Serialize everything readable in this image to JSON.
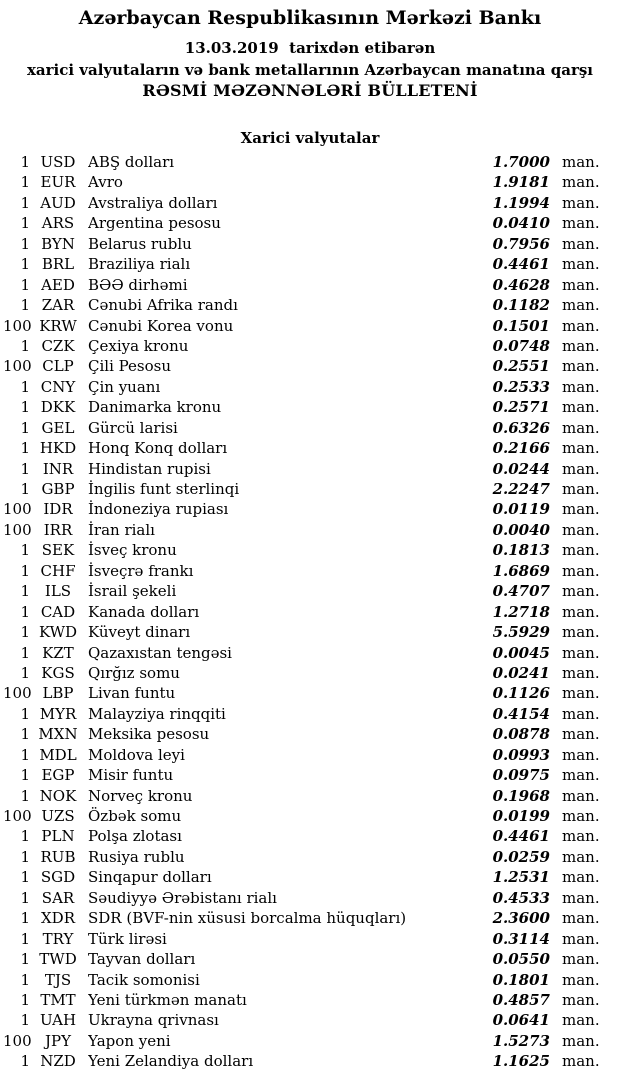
{
  "header": {
    "title": "Azərbaycan Respublikasının Mərkəzi Bankı",
    "date_line": "13.03.2019  tarixdən etibarən",
    "subtitle": "xarici valyutaların və bank metallarının Azərbaycan manatına qarşı",
    "bulletin_title": "RƏSMİ MƏZƏNNƏLƏRİ BÜLLETENİ"
  },
  "section": {
    "title": "Xarici valyutalar"
  },
  "unit_label": "man.",
  "colors": {
    "text": "#000000",
    "background": "#ffffff"
  },
  "rates": [
    {
      "qty": "1",
      "code": "USD",
      "name": "ABŞ dolları",
      "rate": "1.7000"
    },
    {
      "qty": "1",
      "code": "EUR",
      "name": "Avro",
      "rate": "1.9181"
    },
    {
      "qty": "1",
      "code": "AUD",
      "name": "Avstraliya dolları",
      "rate": "1.1994"
    },
    {
      "qty": "1",
      "code": "ARS",
      "name": "Argentina pesosu",
      "rate": "0.0410"
    },
    {
      "qty": "1",
      "code": "BYN",
      "name": "Belarus rublu",
      "rate": "0.7956"
    },
    {
      "qty": "1",
      "code": "BRL",
      "name": "Braziliya rialı",
      "rate": "0.4461"
    },
    {
      "qty": "1",
      "code": "AED",
      "name": "BƏƏ dirhəmi",
      "rate": "0.4628"
    },
    {
      "qty": "1",
      "code": "ZAR",
      "name": "Cənubi Afrika randı",
      "rate": "0.1182"
    },
    {
      "qty": "100",
      "code": "KRW",
      "name": "Cənubi Korea vonu",
      "rate": "0.1501"
    },
    {
      "qty": "1",
      "code": "CZK",
      "name": "Çexiya kronu",
      "rate": "0.0748"
    },
    {
      "qty": "100",
      "code": "CLP",
      "name": "Çili Pesosu",
      "rate": "0.2551"
    },
    {
      "qty": "1",
      "code": "CNY",
      "name": "Çin yuanı",
      "rate": "0.2533"
    },
    {
      "qty": "1",
      "code": "DKK",
      "name": "Danimarka kronu",
      "rate": "0.2571"
    },
    {
      "qty": "1",
      "code": "GEL",
      "name": "Gürcü larisi",
      "rate": "0.6326"
    },
    {
      "qty": "1",
      "code": "HKD",
      "name": "Honq Konq dolları",
      "rate": "0.2166"
    },
    {
      "qty": "1",
      "code": "INR",
      "name": "Hindistan rupisi",
      "rate": "0.0244"
    },
    {
      "qty": "1",
      "code": "GBP",
      "name": "İngilis funt sterlinqi",
      "rate": "2.2247"
    },
    {
      "qty": "100",
      "code": "IDR",
      "name": "İndoneziya rupiası",
      "rate": "0.0119"
    },
    {
      "qty": "100",
      "code": "IRR",
      "name": "İran rialı",
      "rate": "0.0040"
    },
    {
      "qty": "1",
      "code": "SEK",
      "name": "İsveç kronu",
      "rate": "0.1813"
    },
    {
      "qty": "1",
      "code": "CHF",
      "name": "İsveçrə frankı",
      "rate": "1.6869"
    },
    {
      "qty": "1",
      "code": "ILS",
      "name": "İsrail şekeli",
      "rate": "0.4707"
    },
    {
      "qty": "1",
      "code": "CAD",
      "name": "Kanada dolları",
      "rate": "1.2718"
    },
    {
      "qty": "1",
      "code": "KWD",
      "name": "Küveyt dinarı",
      "rate": "5.5929"
    },
    {
      "qty": "1",
      "code": "KZT",
      "name": "Qazaxıstan tengəsi",
      "rate": "0.0045"
    },
    {
      "qty": "1",
      "code": "KGS",
      "name": "Qırğız somu",
      "rate": "0.0241"
    },
    {
      "qty": "100",
      "code": "LBP",
      "name": "Livan funtu",
      "rate": "0.1126"
    },
    {
      "qty": "1",
      "code": "MYR",
      "name": "Malayziya rinqqiti",
      "rate": "0.4154"
    },
    {
      "qty": "1",
      "code": "MXN",
      "name": "Meksika pesosu",
      "rate": "0.0878"
    },
    {
      "qty": "1",
      "code": "MDL",
      "name": "Moldova leyi",
      "rate": "0.0993"
    },
    {
      "qty": "1",
      "code": "EGP",
      "name": "Misir funtu",
      "rate": "0.0975"
    },
    {
      "qty": "1",
      "code": "NOK",
      "name": "Norveç kronu",
      "rate": "0.1968"
    },
    {
      "qty": "100",
      "code": "UZS",
      "name": "Özbək somu",
      "rate": "0.0199"
    },
    {
      "qty": "1",
      "code": "PLN",
      "name": "Polşa zlotası",
      "rate": "0.4461"
    },
    {
      "qty": "1",
      "code": "RUB",
      "name": "Rusiya rublu",
      "rate": "0.0259"
    },
    {
      "qty": "1",
      "code": "SGD",
      "name": "Sinqapur dolları",
      "rate": "1.2531"
    },
    {
      "qty": "1",
      "code": "SAR",
      "name": "Səudiyyə Ərəbistanı rialı",
      "rate": "0.4533"
    },
    {
      "qty": "1",
      "code": "XDR",
      "name": "SDR (BVF-nin xüsusi borcalma hüquqları)",
      "rate": "2.3600"
    },
    {
      "qty": "1",
      "code": "TRY",
      "name": "Türk lirəsi",
      "rate": "0.3114"
    },
    {
      "qty": "1",
      "code": "TWD",
      "name": "Tayvan dolları",
      "rate": "0.0550"
    },
    {
      "qty": "1",
      "code": "TJS",
      "name": "Tacik somonisi",
      "rate": "0.1801"
    },
    {
      "qty": "1",
      "code": "TMT",
      "name": "Yeni türkmən manatı",
      "rate": "0.4857"
    },
    {
      "qty": "1",
      "code": "UAH",
      "name": "Ukrayna qrivnası",
      "rate": "0.0641"
    },
    {
      "qty": "100",
      "code": "JPY",
      "name": "Yapon yeni",
      "rate": "1.5273"
    },
    {
      "qty": "1",
      "code": "NZD",
      "name": "Yeni Zelandiya dolları",
      "rate": "1.1625"
    }
  ]
}
